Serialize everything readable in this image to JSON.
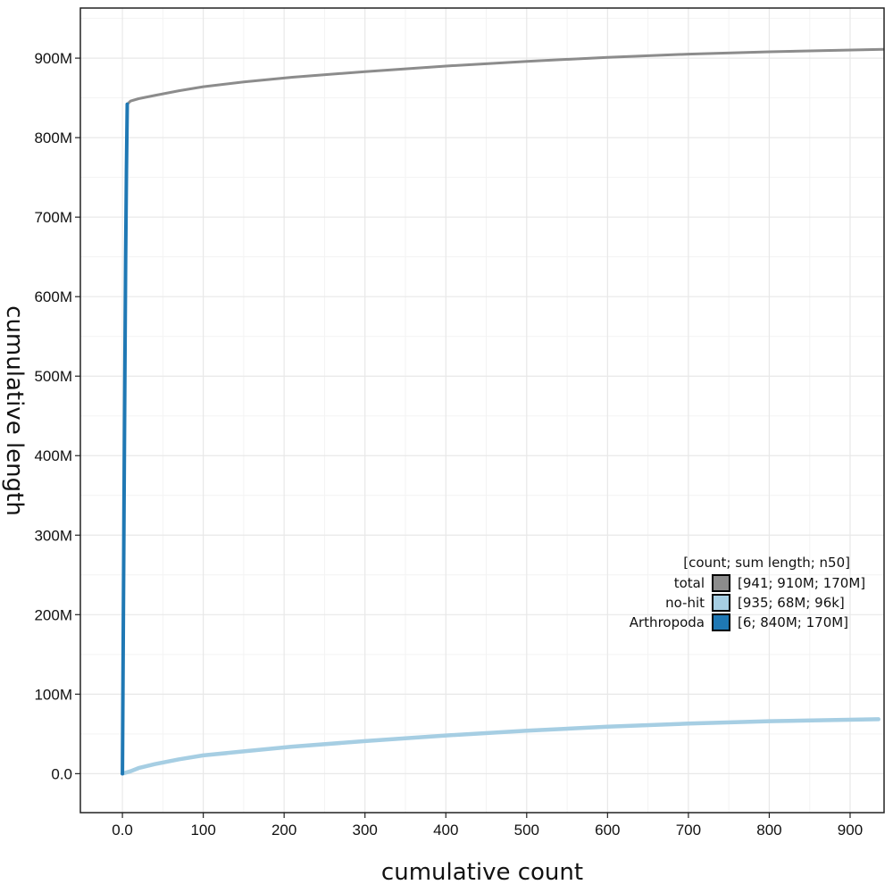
{
  "chart_data": {
    "type": "line",
    "xlabel": "cumulative count",
    "ylabel": "cumulative length",
    "xlim": [
      -52,
      942
    ],
    "ylim": [
      -49000000,
      963000000
    ],
    "grid": true,
    "x_ticks": [
      {
        "value": 0,
        "label": "0.0"
      },
      {
        "value": 100,
        "label": "100"
      },
      {
        "value": 200,
        "label": "200"
      },
      {
        "value": 300,
        "label": "300"
      },
      {
        "value": 400,
        "label": "400"
      },
      {
        "value": 500,
        "label": "500"
      },
      {
        "value": 600,
        "label": "600"
      },
      {
        "value": 700,
        "label": "700"
      },
      {
        "value": 800,
        "label": "800"
      },
      {
        "value": 900,
        "label": "900"
      }
    ],
    "y_ticks": [
      {
        "value": 0,
        "label": "0.0"
      },
      {
        "value": 100000000,
        "label": "100M"
      },
      {
        "value": 200000000,
        "label": "200M"
      },
      {
        "value": 300000000,
        "label": "300M"
      },
      {
        "value": 400000000,
        "label": "400M"
      },
      {
        "value": 500000000,
        "label": "500M"
      },
      {
        "value": 600000000,
        "label": "600M"
      },
      {
        "value": 700000000,
        "label": "700M"
      },
      {
        "value": 800000000,
        "label": "800M"
      },
      {
        "value": 900000000,
        "label": "900M"
      }
    ],
    "legend": {
      "placement": "bottom-right",
      "title": "[count; sum length; n50]",
      "entries": [
        {
          "name": "total",
          "label": "[941; 910M; 170M]",
          "color": "#8c8c8c"
        },
        {
          "name": "no-hit",
          "label": "[935; 68M; 96k]",
          "color": "#a6cee3"
        },
        {
          "name": "Arthropoda",
          "label": "[6; 840M; 170M]",
          "color": "#1f78b4"
        }
      ]
    },
    "series": [
      {
        "name": "total",
        "color": "#8c8c8c",
        "x": [
          6,
          10,
          20,
          40,
          70,
          100,
          150,
          210,
          300,
          400,
          500,
          600,
          700,
          800,
          941
        ],
        "y": [
          842000000,
          846000000,
          849000000,
          853000000,
          859000000,
          864000000,
          870000000,
          876000000,
          883000000,
          890000000,
          896000000,
          901000000,
          905000000,
          908000000,
          911000000
        ]
      },
      {
        "name": "no-hit",
        "color": "#a6cee3",
        "x": [
          0,
          10,
          20,
          40,
          70,
          100,
          150,
          210,
          300,
          400,
          500,
          600,
          700,
          800,
          935
        ],
        "y": [
          0,
          3000000,
          7000000,
          12000000,
          18000000,
          23000000,
          28000000,
          34000000,
          41000000,
          48000000,
          54000000,
          59000000,
          63000000,
          66000000,
          68500000
        ]
      },
      {
        "name": "Arthropoda",
        "color": "#1f78b4",
        "x": [
          0,
          1,
          2,
          3,
          4,
          5,
          6
        ],
        "y": [
          0,
          170000000,
          340000000,
          500000000,
          650000000,
          760000000,
          842000000
        ]
      }
    ]
  }
}
